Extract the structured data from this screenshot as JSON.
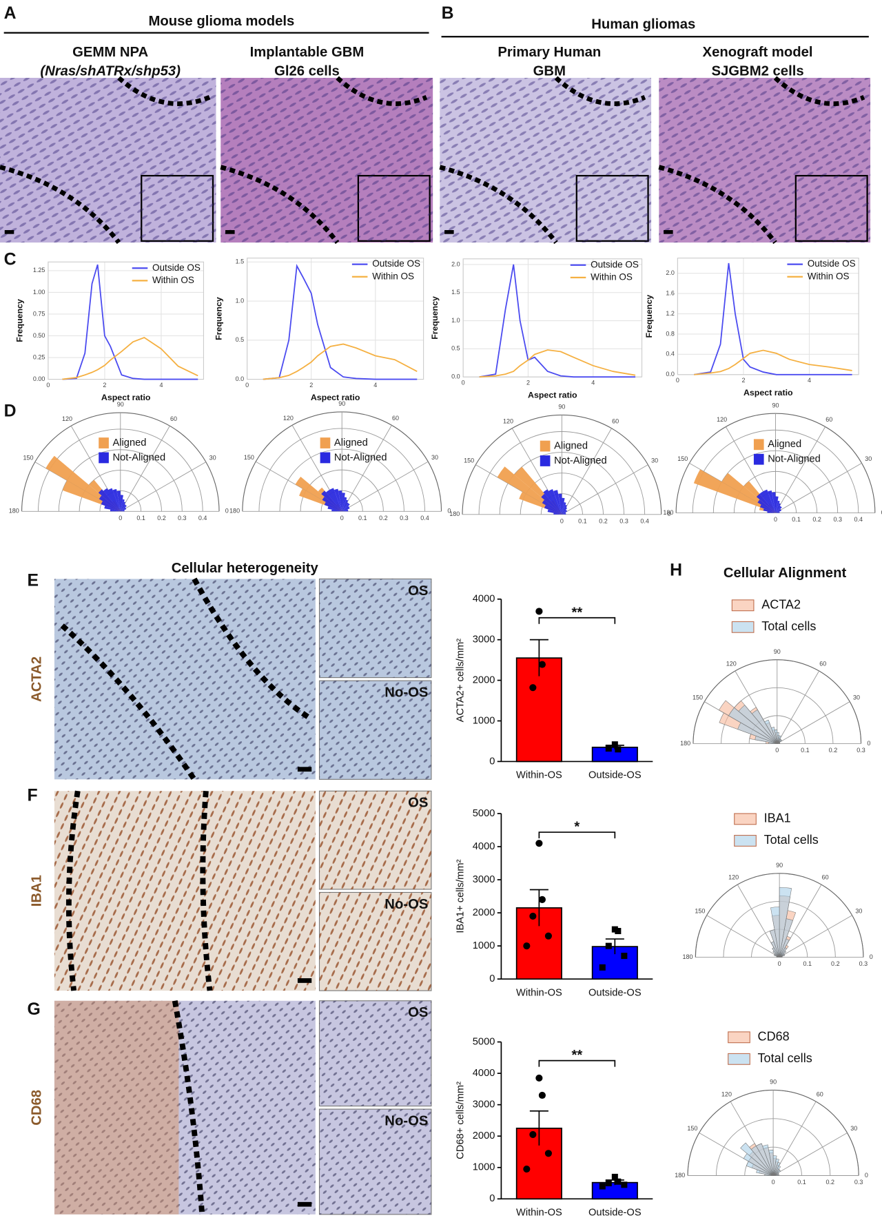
{
  "figure": {
    "panel_labels": [
      "A",
      "B",
      "C",
      "D",
      "E",
      "F",
      "G",
      "H"
    ],
    "section_titles": [
      "Mouse glioma models",
      "Human gliomas",
      "Cellular heterogeneity",
      "Cellular Alignment"
    ],
    "columns": [
      [
        "GEMM NPA",
        "(Nras/shATRx/shp53)"
      ],
      [
        "Implantable GBM",
        "Gl26 cells"
      ],
      [
        "Primary Human",
        "GBM"
      ],
      [
        "Xenograft model",
        "SJGBM2 cells"
      ]
    ],
    "stain_labels": [
      "ACTA2",
      "IBA1",
      "CD68"
    ],
    "inset_labels": [
      "OS",
      "No-OS"
    ]
  },
  "chart_data": [
    {
      "type": "line",
      "x_label": "Aspect ratio",
      "y_label": "Frequency",
      "grid": true,
      "x": [
        0.5,
        1.0,
        1.3,
        1.55,
        1.75,
        2.0,
        2.2,
        2.6,
        3.0,
        3.4,
        4.0,
        4.6,
        5.3
      ],
      "series": [
        {
          "name": "Outside OS",
          "color": "#4b4bf0",
          "values": [
            0,
            0.01,
            0.3,
            1.1,
            1.32,
            0.5,
            0.38,
            0.05,
            0.01,
            0,
            0,
            0,
            0
          ]
        },
        {
          "name": "Within OS",
          "color": "#f5b041",
          "values": [
            0,
            0.02,
            0.05,
            0.08,
            0.11,
            0.16,
            0.22,
            0.32,
            0.43,
            0.48,
            0.35,
            0.15,
            0.04
          ]
        }
      ],
      "xlim": [
        0,
        5.5
      ],
      "xticks": [
        0,
        2,
        4
      ],
      "ylim": [
        0,
        1.35
      ],
      "yticks": [
        {
          "value": 0,
          "label": "0.00"
        },
        {
          "value": 0.25,
          "label": "0.25"
        },
        {
          "value": 0.5,
          "label": "0.50"
        },
        {
          "value": 0.75,
          "label": "0.75"
        },
        {
          "value": 1,
          "label": "1.00"
        },
        {
          "value": 1.25,
          "label": "1.25"
        }
      ]
    },
    {
      "type": "line",
      "x_label": "Aspect ratio",
      "y_label": "Frequency",
      "grid": true,
      "x": [
        0.5,
        1.0,
        1.3,
        1.55,
        1.75,
        2.0,
        2.2,
        2.6,
        3.0,
        3.4,
        4.0,
        4.6,
        5.3
      ],
      "series": [
        {
          "name": "Outside OS",
          "color": "#4b4bf0",
          "values": [
            0,
            0.02,
            0.5,
            1.45,
            1.3,
            1.1,
            0.7,
            0.15,
            0.03,
            0.01,
            0,
            0,
            0
          ]
        },
        {
          "name": "Within OS",
          "color": "#f5b041",
          "values": [
            0,
            0.02,
            0.05,
            0.1,
            0.15,
            0.22,
            0.3,
            0.42,
            0.45,
            0.4,
            0.3,
            0.25,
            0.1
          ]
        }
      ],
      "xlim": [
        0,
        5.5
      ],
      "xticks": [
        0,
        2,
        4
      ],
      "ylim": [
        0,
        1.55
      ],
      "yticks": [
        {
          "value": 0,
          "label": "0.0"
        },
        {
          "value": 0.5,
          "label": "0.5"
        },
        {
          "value": 1,
          "label": "1.0"
        },
        {
          "value": 1.5,
          "label": "1.5"
        }
      ]
    },
    {
      "type": "line",
      "x_label": "Aspect ratio",
      "y_label": "Frequency",
      "grid": true,
      "x": [
        0.5,
        1.0,
        1.3,
        1.55,
        1.75,
        2.0,
        2.2,
        2.6,
        3.0,
        3.4,
        4.0,
        4.6,
        5.3
      ],
      "series": [
        {
          "name": "Outside OS",
          "color": "#4b4bf0",
          "values": [
            0,
            0.05,
            1.2,
            2.0,
            1.0,
            0.3,
            0.35,
            0.1,
            0.02,
            0,
            0,
            0,
            0
          ]
        },
        {
          "name": "Within OS",
          "color": "#f5b041",
          "values": [
            0,
            0.02,
            0.05,
            0.1,
            0.2,
            0.3,
            0.4,
            0.48,
            0.45,
            0.35,
            0.2,
            0.1,
            0.03
          ]
        }
      ],
      "xlim": [
        0,
        5.5
      ],
      "xticks": [
        0,
        2,
        4
      ],
      "ylim": [
        0,
        2.1
      ],
      "yticks": [
        {
          "value": 0,
          "label": "0.0"
        },
        {
          "value": 0.5,
          "label": "0.5"
        },
        {
          "value": 1,
          "label": "1.0"
        },
        {
          "value": 1.5,
          "label": "1.5"
        },
        {
          "value": 2,
          "label": "2.0"
        }
      ]
    },
    {
      "type": "line",
      "x_label": "Aspect ratio",
      "y_label": "Frequency",
      "grid": true,
      "x": [
        0.5,
        1.0,
        1.3,
        1.55,
        1.75,
        2.0,
        2.2,
        2.6,
        3.0,
        3.4,
        4.0,
        4.6,
        5.3
      ],
      "series": [
        {
          "name": "Outside OS",
          "color": "#4b4bf0",
          "values": [
            0,
            0.05,
            0.6,
            2.2,
            1.2,
            0.3,
            0.15,
            0.05,
            0,
            0,
            0,
            0,
            0
          ]
        },
        {
          "name": "Within OS",
          "color": "#f5b041",
          "values": [
            0,
            0.03,
            0.06,
            0.12,
            0.2,
            0.32,
            0.42,
            0.48,
            0.42,
            0.3,
            0.2,
            0.15,
            0.08
          ]
        }
      ],
      "xlim": [
        0,
        5.5
      ],
      "xticks": [
        0,
        2,
        4
      ],
      "ylim": [
        0,
        2.3
      ],
      "yticks": [
        {
          "value": 0,
          "label": "0.0"
        },
        {
          "value": 0.4,
          "label": "0.4"
        },
        {
          "value": 0.8,
          "label": "0.8"
        },
        {
          "value": 1.2,
          "label": "1.2"
        },
        {
          "value": 1.6,
          "label": "1.6"
        },
        {
          "value": 2,
          "label": "2.0"
        }
      ]
    },
    {
      "type": "polar",
      "angles": [
        5,
        15,
        25,
        35,
        45,
        55,
        65,
        75,
        85,
        95,
        105,
        115,
        125,
        135,
        145,
        155,
        165,
        175
      ],
      "series": [
        {
          "name": "Aligned",
          "color": "#f0a050",
          "values": [
            0,
            0,
            0,
            0,
            0,
            0,
            0,
            0,
            0,
            0,
            0,
            0,
            0.06,
            0.2,
            0.42,
            0.3,
            0.05,
            0
          ]
        },
        {
          "name": "Not-Aligned",
          "color": "#2a2ae0",
          "values": [
            0.02,
            0.02,
            0.03,
            0.03,
            0.04,
            0.04,
            0.05,
            0.06,
            0.08,
            0.1,
            0.11,
            0.12,
            0.13,
            0.14,
            0.12,
            0.1,
            0.08,
            0.05
          ]
        }
      ],
      "rlim": [
        0,
        0.48
      ],
      "rticks": [
        0,
        0.1,
        0.2,
        0.3,
        0.4
      ],
      "thetaticks": [
        0,
        30,
        60,
        90,
        120,
        150,
        180
      ]
    },
    {
      "type": "polar",
      "angles": [
        5,
        15,
        25,
        35,
        45,
        55,
        65,
        75,
        85,
        95,
        105,
        115,
        125,
        135,
        145,
        155,
        165,
        175
      ],
      "series": [
        {
          "name": "Aligned",
          "color": "#f0a050",
          "values": [
            0,
            0,
            0,
            0,
            0,
            0,
            0,
            0,
            0,
            0,
            0,
            0,
            0.04,
            0.15,
            0.26,
            0.22,
            0.04,
            0
          ]
        },
        {
          "name": "Not-Aligned",
          "color": "#2a2ae0",
          "values": [
            0.03,
            0.03,
            0.04,
            0.04,
            0.05,
            0.05,
            0.06,
            0.07,
            0.09,
            0.1,
            0.11,
            0.12,
            0.12,
            0.13,
            0.11,
            0.09,
            0.07,
            0.05
          ]
        }
      ],
      "rlim": [
        0,
        0.48
      ],
      "rticks": [
        0,
        0.1,
        0.2,
        0.3,
        0.4
      ],
      "thetaticks": [
        0,
        30,
        60,
        90,
        120,
        150,
        180
      ]
    },
    {
      "type": "polar",
      "angles": [
        5,
        15,
        25,
        35,
        45,
        55,
        65,
        75,
        85,
        95,
        105,
        115,
        125,
        135,
        145,
        155,
        165,
        175
      ],
      "series": [
        {
          "name": "Aligned",
          "color": "#f0a050",
          "values": [
            0,
            0,
            0,
            0,
            0,
            0,
            0,
            0,
            0,
            0,
            0,
            0,
            0.08,
            0.3,
            0.36,
            0.22,
            0.05,
            0
          ]
        },
        {
          "name": "Not-Aligned",
          "color": "#2a2ae0",
          "values": [
            0.02,
            0.02,
            0.02,
            0.03,
            0.03,
            0.04,
            0.05,
            0.06,
            0.08,
            0.1,
            0.12,
            0.13,
            0.14,
            0.13,
            0.11,
            0.09,
            0.07,
            0.04
          ]
        }
      ],
      "rlim": [
        0,
        0.48
      ],
      "rticks": [
        0,
        0.1,
        0.2,
        0.3,
        0.4
      ],
      "thetaticks": [
        0,
        30,
        60,
        90,
        120,
        150,
        180
      ]
    },
    {
      "type": "polar",
      "angles": [
        5,
        15,
        25,
        35,
        45,
        55,
        65,
        75,
        85,
        95,
        105,
        115,
        125,
        135,
        145,
        155,
        165,
        175
      ],
      "series": [
        {
          "name": "Aligned",
          "color": "#f0a050",
          "values": [
            0,
            0,
            0,
            0,
            0,
            0,
            0,
            0,
            0,
            0,
            0,
            0,
            0.05,
            0.2,
            0.3,
            0.42,
            0.08,
            0
          ]
        },
        {
          "name": "Not-Aligned",
          "color": "#2a2ae0",
          "values": [
            0.02,
            0.02,
            0.03,
            0.03,
            0.04,
            0.04,
            0.05,
            0.06,
            0.08,
            0.1,
            0.11,
            0.12,
            0.12,
            0.12,
            0.1,
            0.08,
            0.06,
            0.04
          ]
        }
      ],
      "rlim": [
        0,
        0.48
      ],
      "rticks": [
        0,
        0.1,
        0.2,
        0.3,
        0.4
      ],
      "thetaticks": [
        0,
        30,
        60,
        90,
        120,
        150,
        180
      ]
    },
    {
      "type": "bar",
      "y_label": "ACTA2+ cells/mm²",
      "categories": [
        "Within-OS",
        "Outside-OS"
      ],
      "colors": [
        "#ff0000",
        "#0000ff"
      ],
      "values": [
        2550,
        350
      ],
      "errors": [
        450,
        50
      ],
      "points": [
        [
          3700,
          2390,
          1820
        ],
        [
          420,
          300,
          320
        ]
      ],
      "significance": "**",
      "ylim": [
        0,
        4000
      ],
      "yticks": [
        0,
        1000,
        2000,
        3000,
        4000
      ]
    },
    {
      "type": "bar",
      "y_label": "IBA1+ cells/mm²",
      "categories": [
        "Within-OS",
        "Outside-OS"
      ],
      "colors": [
        "#ff0000",
        "#0000ff"
      ],
      "values": [
        2150,
        980
      ],
      "errors": [
        550,
        230
      ],
      "points": [
        [
          4100,
          2400,
          1900,
          1300,
          1000
        ],
        [
          1500,
          1450,
          1000,
          700,
          350
        ]
      ],
      "significance": "*",
      "ylim": [
        0,
        5000
      ],
      "yticks": [
        0,
        1000,
        2000,
        3000,
        4000,
        5000
      ]
    },
    {
      "type": "bar",
      "y_label": "CD68+ cells/mm²",
      "categories": [
        "Within-OS",
        "Outside-OS"
      ],
      "colors": [
        "#ff0000",
        "#0000ff"
      ],
      "values": [
        2250,
        520
      ],
      "errors": [
        550,
        80
      ],
      "points": [
        [
          3850,
          3300,
          2050,
          1450,
          950
        ],
        [
          700,
          550,
          500,
          450,
          400
        ]
      ],
      "significance": "**",
      "ylim": [
        0,
        5000
      ],
      "yticks": [
        0,
        1000,
        2000,
        3000,
        4000,
        5000
      ]
    },
    {
      "type": "polar",
      "angles": [
        5,
        15,
        25,
        35,
        45,
        55,
        65,
        75,
        85,
        95,
        105,
        115,
        125,
        135,
        145,
        155,
        165,
        175
      ],
      "series": [
        {
          "name": "ACTA2",
          "color": "#f6b89a",
          "values": [
            0.01,
            0.01,
            0.01,
            0.01,
            0.01,
            0.02,
            0.02,
            0.02,
            0.03,
            0.04,
            0.05,
            0.08,
            0.15,
            0.2,
            0.24,
            0.22,
            0.1,
            0.04
          ]
        },
        {
          "name": "Total cells",
          "color": "#a9cfe8",
          "values": [
            0.01,
            0.01,
            0.01,
            0.02,
            0.02,
            0.02,
            0.03,
            0.03,
            0.04,
            0.05,
            0.06,
            0.09,
            0.14,
            0.18,
            0.2,
            0.15,
            0.08,
            0.03
          ]
        }
      ],
      "rlim": [
        0,
        0.3
      ],
      "rticks": [
        0,
        0.1,
        0.2,
        0.3
      ],
      "thetaticks": [
        0,
        30,
        60,
        90,
        120,
        150,
        180
      ]
    },
    {
      "type": "polar",
      "angles": [
        5,
        15,
        25,
        35,
        45,
        55,
        65,
        75,
        85,
        95,
        105,
        115,
        125,
        135,
        145,
        155,
        165,
        175
      ],
      "series": [
        {
          "name": "IBA1",
          "color": "#f6b89a",
          "values": [
            0.01,
            0.01,
            0.02,
            0.02,
            0.03,
            0.05,
            0.08,
            0.17,
            0.22,
            0.15,
            0.1,
            0.06,
            0.04,
            0.03,
            0.02,
            0.02,
            0.01,
            0.01
          ]
        },
        {
          "name": "Total cells",
          "color": "#a9cfe8",
          "values": [
            0.01,
            0.01,
            0.02,
            0.02,
            0.03,
            0.04,
            0.07,
            0.14,
            0.25,
            0.18,
            0.1,
            0.06,
            0.04,
            0.03,
            0.02,
            0.02,
            0.01,
            0.01
          ]
        }
      ],
      "rlim": [
        0,
        0.3
      ],
      "rticks": [
        0,
        0.1,
        0.2,
        0.3
      ],
      "thetaticks": [
        0,
        30,
        60,
        90,
        120,
        150,
        180
      ]
    },
    {
      "type": "polar",
      "angles": [
        5,
        15,
        25,
        35,
        45,
        55,
        65,
        75,
        85,
        95,
        105,
        115,
        125,
        135,
        145,
        155,
        165,
        175
      ],
      "series": [
        {
          "name": "CD68",
          "color": "#f6b89a",
          "values": [
            0.02,
            0.02,
            0.02,
            0.02,
            0.03,
            0.03,
            0.04,
            0.05,
            0.06,
            0.08,
            0.1,
            0.12,
            0.13,
            0.11,
            0.1,
            0.08,
            0.05,
            0.03
          ]
        },
        {
          "name": "Total cells",
          "color": "#a9cfe8",
          "values": [
            0.02,
            0.02,
            0.02,
            0.03,
            0.03,
            0.04,
            0.05,
            0.06,
            0.07,
            0.09,
            0.11,
            0.12,
            0.12,
            0.15,
            0.12,
            0.1,
            0.06,
            0.03
          ]
        }
      ],
      "rlim": [
        0,
        0.3
      ],
      "rticks": [
        0,
        0.1,
        0.2,
        0.3
      ],
      "thetaticks": [
        0,
        30,
        60,
        90,
        120,
        150,
        180
      ]
    }
  ]
}
